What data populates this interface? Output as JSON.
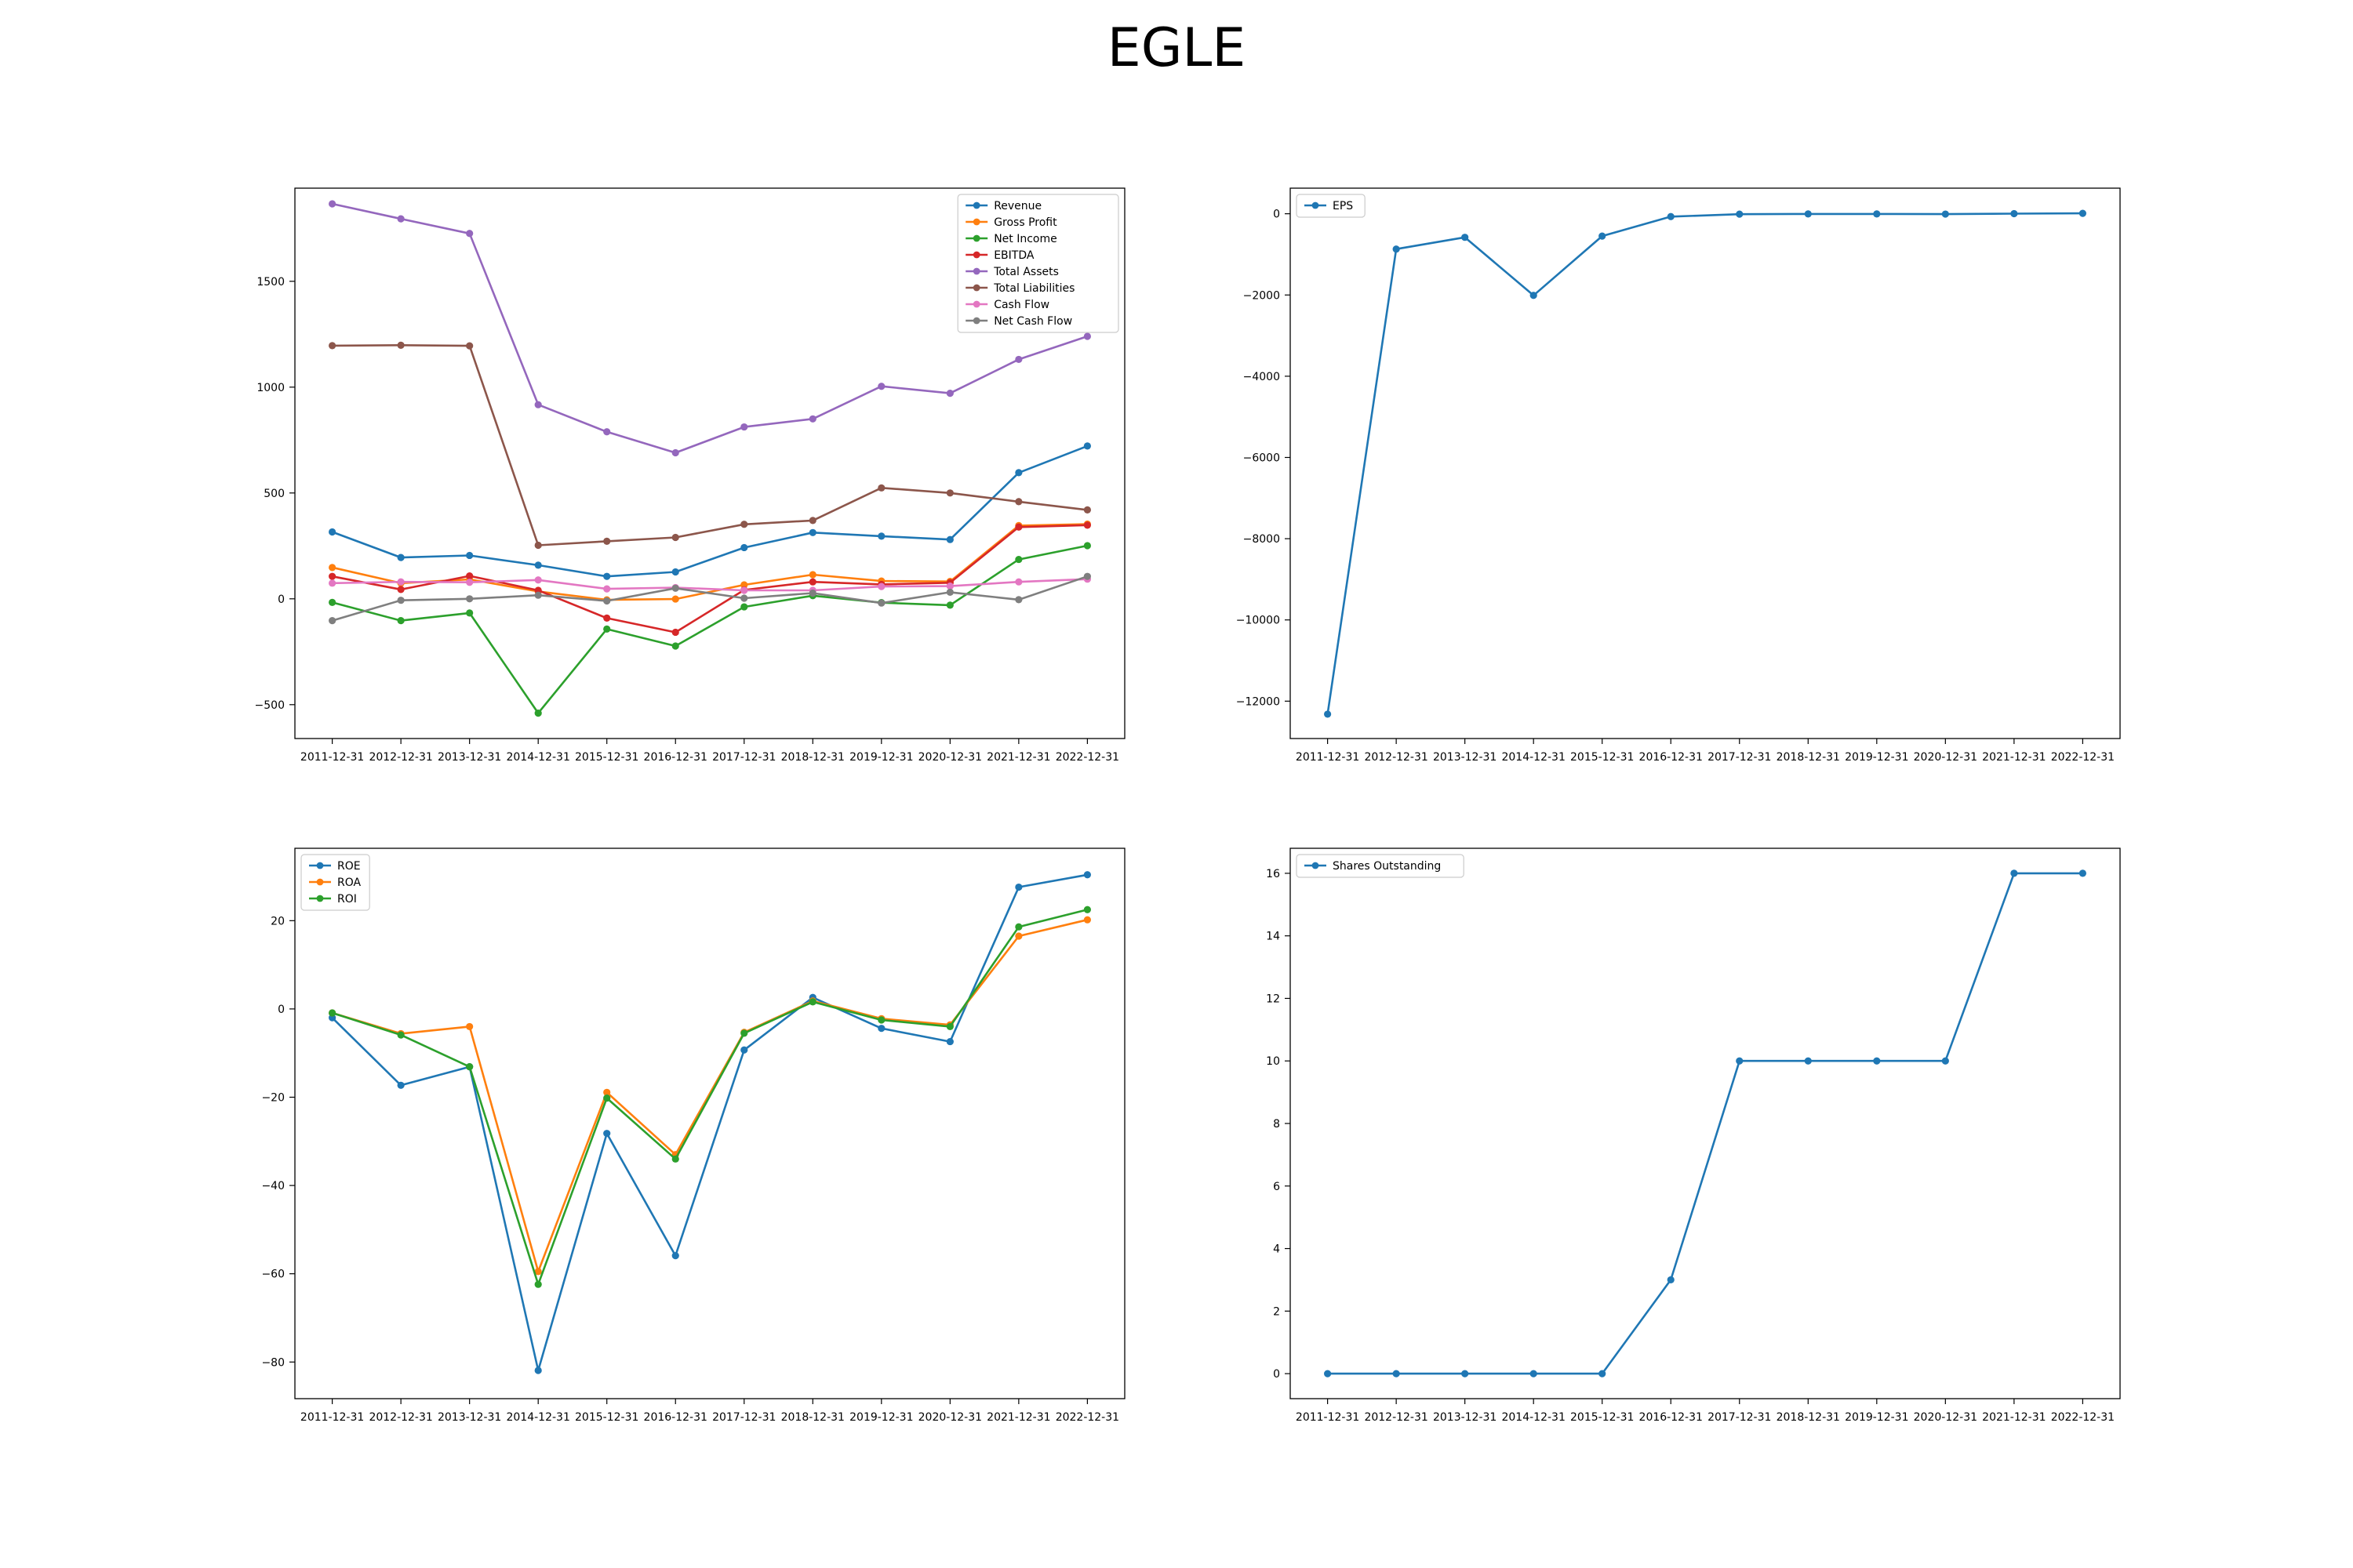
{
  "title": "EGLE",
  "chart_data": [
    {
      "type": "line",
      "panel": "top-left",
      "categories": [
        "2011-12-31",
        "2012-12-31",
        "2013-12-31",
        "2014-12-31",
        "2015-12-31",
        "2016-12-31",
        "2017-12-31",
        "2018-12-31",
        "2019-12-31",
        "2020-12-31",
        "2021-12-31",
        "2022-12-31"
      ],
      "ylim": [
        -660,
        1940
      ],
      "yticks": [
        -500,
        0,
        500,
        1000,
        1500
      ],
      "legend": "top-right",
      "grid": false,
      "series": [
        {
          "name": "Revenue",
          "color": "#1f77b4",
          "values": [
            316,
            195,
            205,
            159,
            106,
            127,
            242,
            313,
            296,
            280,
            596,
            722
          ]
        },
        {
          "name": "Gross Profit",
          "color": "#ff7f0e",
          "values": [
            148,
            74,
            92,
            35,
            -5,
            -1,
            66,
            114,
            84,
            82,
            346,
            353
          ]
        },
        {
          "name": "Net Income",
          "color": "#2ca02c",
          "values": [
            -17,
            -103,
            -67,
            -540,
            -143,
            -223,
            -38,
            15,
            -18,
            -30,
            186,
            251
          ]
        },
        {
          "name": "EBITDA",
          "color": "#d62728",
          "values": [
            106,
            44,
            108,
            40,
            -91,
            -158,
            42,
            80,
            68,
            76,
            339,
            348
          ]
        },
        {
          "name": "Total Assets",
          "color": "#9467bd",
          "values": [
            1866,
            1795,
            1726,
            917,
            789,
            690,
            812,
            850,
            1004,
            971,
            1131,
            1240
          ]
        },
        {
          "name": "Total Liabilities",
          "color": "#8c564b",
          "values": [
            1196,
            1198,
            1195,
            253,
            272,
            290,
            352,
            370,
            524,
            500,
            459,
            420
          ]
        },
        {
          "name": "Cash Flow",
          "color": "#e377c2",
          "values": [
            74,
            80,
            78,
            89,
            47,
            53,
            40,
            40,
            58,
            60,
            80,
            93
          ]
        },
        {
          "name": "Net Cash Flow",
          "color": "#7f7f7f",
          "values": [
            -103,
            -7,
            0,
            17,
            -10,
            50,
            3,
            27,
            -20,
            31,
            -4,
            106
          ]
        }
      ]
    },
    {
      "type": "line",
      "panel": "top-right",
      "categories": [
        "2011-12-31",
        "2012-12-31",
        "2013-12-31",
        "2014-12-31",
        "2015-12-31",
        "2016-12-31",
        "2017-12-31",
        "2018-12-31",
        "2019-12-31",
        "2020-12-31",
        "2021-12-31",
        "2022-12-31"
      ],
      "ylim": [
        -12920,
        630
      ],
      "yticks": [
        -12000,
        -10000,
        -8000,
        -6000,
        -4000,
        -2000,
        0
      ],
      "legend": "top-left",
      "grid": false,
      "series": [
        {
          "name": "EPS",
          "color": "#1f77b4",
          "values": [
            -12320,
            -870,
            -580,
            -2010,
            -550,
            -70,
            -10,
            -5,
            -5,
            -8,
            2,
            10
          ]
        }
      ]
    },
    {
      "type": "line",
      "panel": "bottom-left",
      "categories": [
        "2011-12-31",
        "2012-12-31",
        "2013-12-31",
        "2014-12-31",
        "2015-12-31",
        "2016-12-31",
        "2017-12-31",
        "2018-12-31",
        "2019-12-31",
        "2020-12-31",
        "2021-12-31",
        "2022-12-31"
      ],
      "ylim": [
        -88.3,
        36.4
      ],
      "yticks": [
        -80,
        -60,
        -40,
        -20,
        0,
        20
      ],
      "legend": "top-left",
      "grid": false,
      "series": [
        {
          "name": "ROE",
          "color": "#1f77b4",
          "values": [
            -2.0,
            -17.3,
            -13.1,
            -81.9,
            -28.2,
            -55.9,
            -9.3,
            2.6,
            -4.4,
            -7.4,
            27.6,
            30.4
          ]
        },
        {
          "name": "ROA",
          "color": "#ff7f0e",
          "values": [
            -0.9,
            -5.6,
            -4.0,
            -59.5,
            -18.9,
            -33.0,
            -5.3,
            1.8,
            -2.2,
            -3.6,
            16.5,
            20.2
          ]
        },
        {
          "name": "ROI",
          "color": "#2ca02c",
          "values": [
            -0.9,
            -5.9,
            -13.1,
            -62.4,
            -20.2,
            -34.0,
            -5.5,
            1.6,
            -2.5,
            -4.0,
            18.6,
            22.5
          ]
        }
      ]
    },
    {
      "type": "line",
      "panel": "bottom-right",
      "categories": [
        "2011-12-31",
        "2012-12-31",
        "2013-12-31",
        "2014-12-31",
        "2015-12-31",
        "2016-12-31",
        "2017-12-31",
        "2018-12-31",
        "2019-12-31",
        "2020-12-31",
        "2021-12-31",
        "2022-12-31"
      ],
      "ylim": [
        -0.8,
        16.8
      ],
      "yticks": [
        0,
        2,
        4,
        6,
        8,
        10,
        12,
        14,
        16
      ],
      "legend": "top-left",
      "grid": false,
      "series": [
        {
          "name": "Shares Outstanding",
          "color": "#1f77b4",
          "values": [
            0,
            0,
            0,
            0,
            0,
            3,
            10,
            10,
            10,
            10,
            16,
            16
          ]
        }
      ]
    }
  ]
}
